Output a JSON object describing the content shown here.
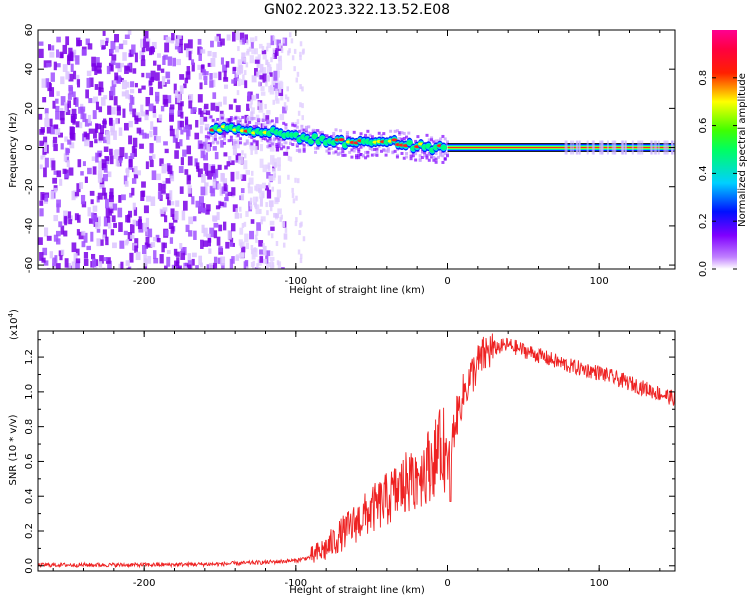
{
  "title": "GN02.2023.322.13.52.E08",
  "colors": {
    "snr_line": "#ee2222",
    "noise_purple": "#7a00e6",
    "axis": "#000000"
  },
  "colorbar": {
    "label": "Normalized spectral amplitude",
    "ticks": [
      "0.0",
      "0.2",
      "0.4",
      "0.6",
      "0.8"
    ],
    "range": [
      0,
      1
    ],
    "colormap": [
      "#ffffff",
      "#8000ff",
      "#0000ff",
      "#00ffff",
      "#00ff00",
      "#ffff00",
      "#ff0000",
      "#ff0080"
    ]
  },
  "chart_data": [
    {
      "type": "heatmap",
      "title": "GN02.2023.322.13.52.E08",
      "xlabel": "Height of straight line (km)",
      "ylabel": "Frequency (Hz)",
      "xlim": [
        -270,
        150
      ],
      "ylim": [
        -62,
        60
      ],
      "xticks": [
        "-200",
        "-100",
        "0",
        "100"
      ],
      "yticks": [
        "-60",
        "-40",
        "-20",
        "0",
        "20",
        "40",
        "60"
      ],
      "features": {
        "noise_region_x": [
          -270,
          -100
        ],
        "signal_track": [
          {
            "x": -155,
            "y": 10
          },
          {
            "x": -130,
            "y": 9
          },
          {
            "x": -110,
            "y": 7
          },
          {
            "x": -95,
            "y": 5
          },
          {
            "x": -75,
            "y": 3
          },
          {
            "x": -55,
            "y": 2
          },
          {
            "x": -40,
            "y": 4
          },
          {
            "x": -25,
            "y": 1
          },
          {
            "x": -10,
            "y": 0
          },
          {
            "x": 0,
            "y": 0
          },
          {
            "x": 150,
            "y": 0
          }
        ]
      }
    },
    {
      "type": "line",
      "xlabel": "Height of straight line (km)",
      "ylabel": "SNR (10 * v/v)",
      "y_multiplier": "(x10^4)",
      "xlim": [
        -270,
        150
      ],
      "ylim": [
        -0.03,
        1.35
      ],
      "xticks": [
        "-200",
        "-100",
        "0",
        "100"
      ],
      "yticks": [
        "0.0",
        "0.2",
        "0.4",
        "0.6",
        "0.8",
        "1.0",
        "1.2"
      ],
      "series": [
        {
          "x": [
            -270,
            -200,
            -150,
            -120,
            -100,
            -90,
            -80,
            -70,
            -60,
            -50,
            -40,
            -30,
            -20,
            -10,
            -3,
            0,
            5,
            10,
            15,
            20,
            25,
            30,
            35,
            40,
            50,
            60,
            70,
            80,
            90,
            100,
            110,
            120,
            130,
            140,
            150
          ],
          "y": [
            0.005,
            0.005,
            0.01,
            0.02,
            0.03,
            0.05,
            0.1,
            0.18,
            0.25,
            0.32,
            0.38,
            0.45,
            0.52,
            0.6,
            0.7,
            0.58,
            0.82,
            0.98,
            1.08,
            1.16,
            1.22,
            1.25,
            1.26,
            1.27,
            1.24,
            1.21,
            1.18,
            1.15,
            1.13,
            1.11,
            1.08,
            1.05,
            1.02,
            0.99,
            0.96
          ]
        }
      ]
    }
  ]
}
